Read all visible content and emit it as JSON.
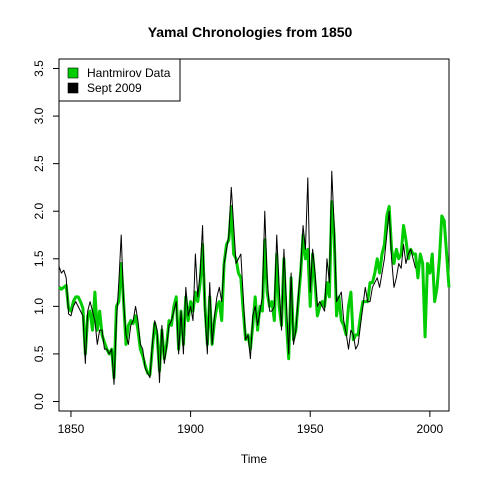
{
  "chart_data": {
    "type": "line",
    "title": "Yamal Chronologies from 1850",
    "xlabel": "Time",
    "ylabel": "",
    "xlim": [
      1845,
      2008
    ],
    "ylim": [
      -0.1,
      3.6
    ],
    "x_ticks": [
      1850,
      1900,
      1950,
      2000
    ],
    "y_ticks": [
      0.0,
      0.5,
      1.0,
      1.5,
      2.0,
      2.5,
      3.0,
      3.5
    ],
    "grid": false,
    "legend_position": "top-left",
    "series": [
      {
        "name": "Hantmirov Data",
        "color": "#00cc00",
        "start_year": 1845,
        "values": [
          1.2,
          1.18,
          1.2,
          1.22,
          0.98,
          0.95,
          1.05,
          1.1,
          1.1,
          1.05,
          0.98,
          0.5,
          0.9,
          0.95,
          0.75,
          1.15,
          0.75,
          0.95,
          0.7,
          0.62,
          0.55,
          0.5,
          0.55,
          0.25,
          1.0,
          1.05,
          1.45,
          1.05,
          0.6,
          0.8,
          0.85,
          0.82,
          0.9,
          0.75,
          0.55,
          0.48,
          0.38,
          0.3,
          0.28,
          0.55,
          0.82,
          0.7,
          0.32,
          0.75,
          0.45,
          0.6,
          0.85,
          0.8,
          1.0,
          1.1,
          0.55,
          0.95,
          0.6,
          1.1,
          0.85,
          1.05,
          0.95,
          1.15,
          1.05,
          1.25,
          1.65,
          1.0,
          0.6,
          1.1,
          0.6,
          0.85,
          1.0,
          1.05,
          0.85,
          1.45,
          1.65,
          1.7,
          2.05,
          1.55,
          1.5,
          1.35,
          1.3,
          0.95,
          0.65,
          0.7,
          0.55,
          0.8,
          1.1,
          0.75,
          1.0,
          0.95,
          1.7,
          1.15,
          1.0,
          1.05,
          0.85,
          1.55,
          1.0,
          0.8,
          1.5,
          0.85,
          0.45,
          1.3,
          0.65,
          0.75,
          1.05,
          1.35,
          1.75,
          1.5,
          1.6,
          1.0,
          1.55,
          1.25,
          0.9,
          1.0,
          1.05,
          1.0,
          1.25,
          1.1,
          2.1,
          1.75,
          0.9,
          1.1,
          0.85,
          0.8,
          0.7,
          1.0,
          1.15,
          0.65,
          0.7,
          0.7,
          0.9,
          1.05,
          1.05,
          1.05,
          1.25,
          1.25,
          1.35,
          1.5,
          1.35,
          1.55,
          1.65,
          1.95,
          2.05,
          1.6,
          1.45,
          1.6,
          1.5,
          1.55,
          1.85,
          1.7,
          1.5,
          1.6,
          1.55,
          1.55,
          1.3,
          1.55,
          1.45,
          0.68,
          1.45,
          1.35,
          1.55,
          1.05,
          1.2,
          1.5,
          1.95,
          1.9,
          1.55,
          1.2
        ]
      },
      {
        "name": "Sept 2009",
        "color": "#000000",
        "start_year": 1845,
        "values": [
          1.42,
          1.35,
          1.38,
          1.3,
          0.92,
          0.9,
          1.0,
          1.05,
          1.0,
          0.95,
          0.9,
          0.4,
          0.95,
          1.05,
          0.95,
          0.85,
          0.6,
          0.75,
          0.75,
          0.55,
          0.55,
          0.5,
          0.55,
          0.18,
          0.85,
          1.25,
          1.75,
          1.05,
          0.7,
          0.6,
          0.8,
          0.85,
          1.0,
          0.85,
          0.6,
          0.55,
          0.35,
          0.3,
          0.25,
          0.6,
          0.85,
          0.75,
          0.2,
          0.8,
          0.4,
          0.58,
          0.8,
          0.85,
          0.95,
          1.05,
          0.5,
          0.95,
          0.5,
          1.2,
          0.9,
          1.0,
          0.85,
          1.55,
          1.1,
          1.35,
          1.85,
          0.95,
          0.5,
          1.25,
          0.6,
          0.9,
          1.1,
          1.2,
          1.05,
          1.45,
          1.6,
          1.75,
          2.25,
          1.85,
          1.45,
          1.5,
          1.55,
          1.1,
          0.65,
          0.7,
          0.45,
          0.9,
          1.0,
          0.8,
          0.95,
          1.1,
          2.0,
          1.3,
          0.95,
          0.95,
          1.0,
          1.75,
          1.2,
          0.75,
          1.6,
          1.05,
          0.5,
          1.35,
          0.6,
          0.75,
          1.1,
          1.4,
          1.85,
          1.6,
          2.35,
          1.15,
          1.6,
          1.35,
          1.0,
          1.05,
          1.0,
          0.95,
          1.5,
          1.25,
          2.42,
          1.85,
          1.05,
          1.1,
          1.15,
          0.85,
          0.72,
          0.55,
          0.75,
          0.7,
          0.55,
          0.6,
          0.8,
          1.0,
          1.2,
          1.05,
          1.05,
          1.2,
          1.25,
          1.3,
          1.2,
          1.35,
          1.5,
          1.75,
          2.0,
          1.5,
          1.2,
          1.3,
          1.45,
          1.4,
          1.65,
          1.45,
          1.55,
          1.6,
          1.5,
          1.4
        ]
      }
    ]
  }
}
